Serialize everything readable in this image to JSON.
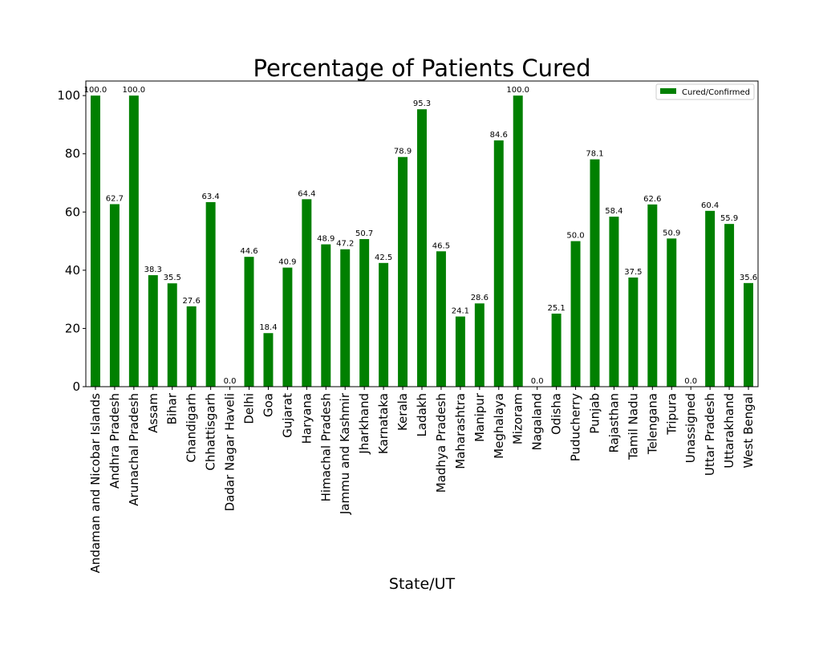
{
  "chart_data": {
    "type": "bar",
    "title": "Percentage of Patients Cured",
    "xlabel": "State/UT",
    "ylabel": "",
    "ylim": [
      0,
      105
    ],
    "yticks": [
      0,
      20,
      40,
      60,
      80,
      100
    ],
    "grid": false,
    "legend_position": "top-right",
    "categories": [
      "Andaman and Nicobar Islands",
      "Andhra Pradesh",
      "Arunachal Pradesh",
      "Assam",
      "Bihar",
      "Chandigarh",
      "Chhattisgarh",
      "Dadar Nagar Haveli",
      "Delhi",
      "Goa",
      "Gujarat",
      "Haryana",
      "Himachal Pradesh",
      "Jammu and Kashmir",
      "Jharkhand",
      "Karnataka",
      "Kerala",
      "Ladakh",
      "Madhya Pradesh",
      "Maharashtra",
      "Manipur",
      "Meghalaya",
      "Mizoram",
      "Nagaland",
      "Odisha",
      "Puducherry",
      "Punjab",
      "Rajasthan",
      "Tamil Nadu",
      "Telengana",
      "Tripura",
      "Unassigned",
      "Uttar Pradesh",
      "Uttarakhand",
      "West Bengal"
    ],
    "series": [
      {
        "name": "Cured/Confirmed",
        "color": "#008000",
        "values": [
          100.0,
          62.7,
          100.0,
          38.3,
          35.5,
          27.6,
          63.4,
          0.0,
          44.6,
          18.4,
          40.9,
          64.4,
          48.9,
          47.2,
          50.7,
          42.5,
          78.9,
          95.3,
          46.5,
          24.1,
          28.6,
          84.6,
          100.0,
          0.0,
          25.1,
          50.0,
          78.1,
          58.4,
          37.5,
          62.6,
          50.9,
          0.0,
          60.4,
          55.9,
          35.6
        ],
        "labels": [
          "100.0",
          "62.7",
          "100.0",
          "38.3",
          "35.5",
          "27.6",
          "63.4",
          "0.0",
          "44.6",
          "18.4",
          "40.9",
          "64.4",
          "48.9",
          "47.2",
          "50.7",
          "42.5",
          "78.9",
          "95.3",
          "46.5",
          "24.1",
          "28.6",
          "84.6",
          "100.0",
          "0.0",
          "25.1",
          "50.0",
          "78.1",
          "58.4",
          "37.5",
          "62.6",
          "50.9",
          "0.0",
          "60.4",
          "55.9",
          "35.6"
        ]
      }
    ]
  }
}
